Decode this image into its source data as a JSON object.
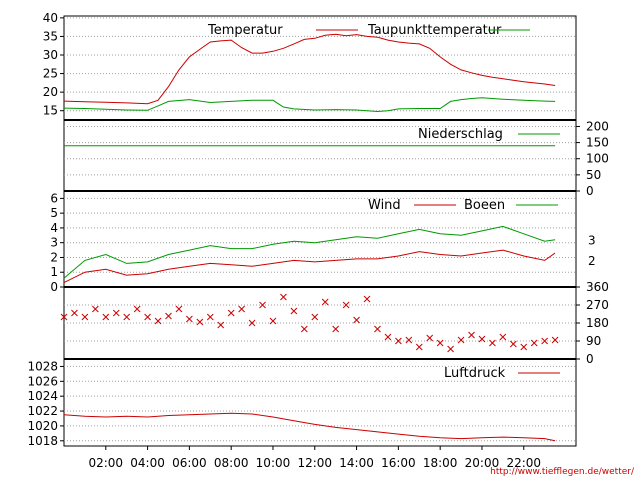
{
  "chart_data": [
    {
      "type": "line",
      "panel": "temperature",
      "legend": [
        "Temperatur",
        "Taupunkttemperatur"
      ],
      "y_ticks": [
        "15",
        "20",
        "25",
        "30",
        "35",
        "40"
      ],
      "ylim": [
        12.5,
        40.5
      ],
      "series": [
        {
          "name": "Temperatur",
          "color": "#cc0000",
          "x": [
            0,
            1,
            2,
            3,
            4,
            4.5,
            5,
            5.5,
            6,
            6.5,
            7,
            7.5,
            8,
            8.5,
            9,
            9.5,
            10,
            10.5,
            11,
            11.5,
            12,
            12.5,
            13,
            13.5,
            14,
            14.5,
            15,
            15.5,
            16,
            16.5,
            17,
            17.5,
            18,
            18.5,
            19,
            19.5,
            20,
            20.5,
            21,
            21.5,
            22,
            22.5,
            23,
            23.5
          ],
          "values": [
            17.6,
            17.4,
            17.3,
            17.1,
            16.9,
            17.8,
            21.5,
            26,
            29.5,
            31.5,
            33.5,
            33.8,
            34,
            32,
            30.5,
            30.5,
            31,
            31.8,
            33,
            34.2,
            34.5,
            35.3,
            35.6,
            35.2,
            35.5,
            35,
            34.8,
            34,
            33.5,
            33.2,
            33,
            31.8,
            29.5,
            27.5,
            26,
            25.2,
            24.5,
            24,
            23.6,
            23.2,
            22.8,
            22.5,
            22.2,
            21.8
          ]
        },
        {
          "name": "Taupunkttemperatur",
          "color": "#009900",
          "x": [
            0,
            1,
            2,
            3,
            4,
            4.5,
            5,
            6,
            7,
            8,
            9,
            10,
            10.5,
            11,
            12,
            13,
            14,
            15,
            15.5,
            16,
            17,
            18,
            18.5,
            19,
            19.5,
            20,
            21,
            22,
            23,
            23.5
          ],
          "values": [
            15.7,
            15.6,
            15.4,
            15.2,
            15.1,
            16.3,
            17.5,
            18,
            17.2,
            17.5,
            17.8,
            17.8,
            16,
            15.5,
            15.2,
            15.3,
            15.2,
            14.8,
            15,
            15.5,
            15.6,
            15.6,
            17.5,
            18,
            18.3,
            18.5,
            18.1,
            17.8,
            17.6,
            17.5
          ]
        }
      ]
    },
    {
      "type": "line",
      "panel": "precipitation",
      "legend": [
        "Niederschlag"
      ],
      "y_ticks": [
        "0",
        "50",
        "100",
        "150",
        "200"
      ],
      "ylim": [
        0,
        220
      ],
      "series": [
        {
          "name": "Niederschlag",
          "color": "#009900",
          "x": [
            0,
            23.5
          ],
          "values": [
            140,
            140
          ]
        }
      ]
    },
    {
      "type": "line",
      "panel": "wind",
      "legend": [
        "Wind",
        "Boeen"
      ],
      "y_ticks": [
        "0",
        "1",
        "2",
        "3",
        "4",
        "5",
        "6"
      ],
      "y_ticks_right": [
        "2",
        "3"
      ],
      "ylim": [
        0,
        6.5
      ],
      "series": [
        {
          "name": "Wind",
          "color": "#cc0000",
          "x": [
            0,
            1,
            2,
            3,
            4,
            5,
            6,
            7,
            8,
            9,
            10,
            11,
            12,
            13,
            14,
            15,
            16,
            17,
            18,
            19,
            20,
            21,
            22,
            23,
            23.5
          ],
          "values": [
            0.3,
            1,
            1.2,
            0.8,
            0.9,
            1.2,
            1.4,
            1.6,
            1.5,
            1.4,
            1.6,
            1.8,
            1.7,
            1.8,
            1.9,
            1.9,
            2.1,
            2.4,
            2.2,
            2.1,
            2.3,
            2.5,
            2.1,
            1.8,
            2.3
          ]
        },
        {
          "name": "Boeen",
          "color": "#009900",
          "x": [
            0,
            1,
            2,
            3,
            4,
            5,
            6,
            7,
            8,
            9,
            10,
            11,
            12,
            13,
            14,
            15,
            16,
            17,
            18,
            19,
            20,
            21,
            22,
            23,
            23.5
          ],
          "values": [
            0.6,
            1.8,
            2.2,
            1.6,
            1.7,
            2.2,
            2.5,
            2.8,
            2.6,
            2.6,
            2.9,
            3.1,
            3,
            3.2,
            3.4,
            3.3,
            3.6,
            3.9,
            3.6,
            3.5,
            3.8,
            4.1,
            3.6,
            3.1,
            3.2
          ]
        }
      ]
    },
    {
      "type": "scatter",
      "panel": "wind_direction",
      "marker": "x",
      "color": "#cc0000",
      "y_ticks": [
        "0",
        "90",
        "180",
        "270",
        "360"
      ],
      "ylim": [
        0,
        360
      ],
      "points": {
        "x": [
          0,
          0.5,
          1,
          1.5,
          2,
          2.5,
          3,
          3.5,
          4,
          4.5,
          5,
          5.5,
          6,
          6.5,
          7,
          7.5,
          8,
          8.5,
          9,
          9.5,
          10,
          10.5,
          11,
          11.5,
          12,
          12.5,
          13,
          13.5,
          14,
          14.5,
          15,
          15.5,
          16,
          16.5,
          17,
          17.5,
          18,
          18.5,
          19,
          19.5,
          20,
          20.5,
          21,
          21.5,
          22,
          22.5,
          23,
          23.5
        ],
        "y": [
          210,
          230,
          210,
          250,
          210,
          230,
          210,
          250,
          210,
          190,
          215,
          250,
          200,
          185,
          210,
          170,
          230,
          250,
          180,
          270,
          190,
          310,
          240,
          150,
          210,
          285,
          150,
          270,
          195,
          300,
          150,
          110,
          90,
          95,
          60,
          105,
          80,
          50,
          95,
          120,
          100,
          80,
          110,
          75,
          60,
          80,
          90,
          95
        ]
      }
    },
    {
      "type": "line",
      "panel": "pressure",
      "legend": [
        "Luftdruck"
      ],
      "y_ticks": [
        "1018",
        "1020",
        "1022",
        "1024",
        "1026",
        "1028"
      ],
      "ylim": [
        1017.3,
        1029
      ],
      "series": [
        {
          "name": "Luftdruck",
          "color": "#cc0000",
          "x": [
            0,
            1,
            2,
            3,
            4,
            5,
            6,
            7,
            8,
            9,
            10,
            11,
            12,
            13,
            14,
            15,
            16,
            17,
            18,
            19,
            20,
            21,
            22,
            23,
            23.5
          ],
          "values": [
            1021.5,
            1021.3,
            1021.2,
            1021.3,
            1021.2,
            1021.4,
            1021.5,
            1021.6,
            1021.7,
            1021.6,
            1021.2,
            1020.7,
            1020.2,
            1019.8,
            1019.5,
            1019.2,
            1018.9,
            1018.6,
            1018.4,
            1018.3,
            1018.4,
            1018.5,
            1018.4,
            1018.3,
            1018.0
          ]
        }
      ]
    }
  ],
  "x_ticks": [
    "02:00",
    "04:00",
    "06:00",
    "08:00",
    "10:00",
    "12:00",
    "14:00",
    "16:00",
    "18:00",
    "20:00",
    "22:00"
  ],
  "source_url": "http://www.tiefflegen.de/wetter/"
}
